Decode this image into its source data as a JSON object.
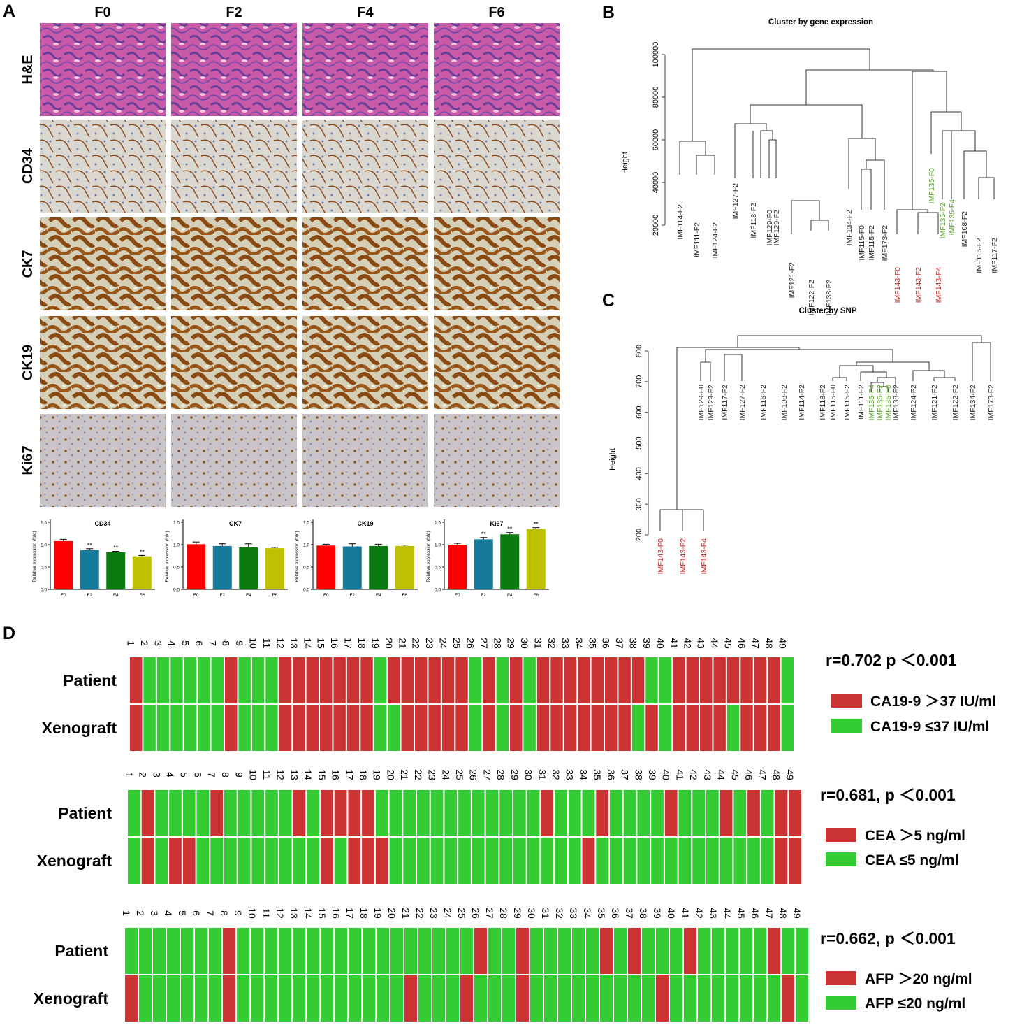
{
  "panels": {
    "a": "A",
    "b": "B",
    "c": "C",
    "d": "D"
  },
  "panel_a": {
    "columns": [
      "F0",
      "F2",
      "F4",
      "F6"
    ],
    "rows": [
      "H&E",
      "CD34",
      "CK7",
      "CK19",
      "Ki67"
    ]
  },
  "chart_data": [
    {
      "type": "bar",
      "title": "CD34",
      "ylabel": "Relative expression (fold)",
      "categories": [
        "F0",
        "F2",
        "F4",
        "F6"
      ],
      "values": [
        1.08,
        0.88,
        0.83,
        0.74
      ],
      "errors": [
        0.04,
        0.03,
        0.02,
        0.02
      ],
      "significance": [
        "",
        "**",
        "**",
        "**"
      ],
      "ylim": [
        0,
        1.5
      ],
      "yticks": [
        "0.0",
        "0.5",
        "1.0",
        "1.5"
      ],
      "colors": [
        "#ff0000",
        "#167a9a",
        "#0a7a10",
        "#bfc000"
      ]
    },
    {
      "type": "bar",
      "title": "CK7",
      "ylabel": "Relative expression (fold)",
      "categories": [
        "F0",
        "F2",
        "F4",
        "F6"
      ],
      "values": [
        1.01,
        0.97,
        0.94,
        0.92
      ],
      "errors": [
        0.05,
        0.05,
        0.08,
        0.02
      ],
      "significance": [
        "",
        "",
        "",
        ""
      ],
      "ylim": [
        0,
        1.5
      ],
      "yticks": [
        "0.0",
        "0.5",
        "1.0",
        "1.5"
      ],
      "colors": [
        "#ff0000",
        "#167a9a",
        "#0a7a10",
        "#bfc000"
      ]
    },
    {
      "type": "bar",
      "title": "CK19",
      "ylabel": "Relative expression (fold)",
      "categories": [
        "F0",
        "F2",
        "F4",
        "F6"
      ],
      "values": [
        0.98,
        0.96,
        0.97,
        0.97
      ],
      "errors": [
        0.03,
        0.06,
        0.04,
        0.02
      ],
      "significance": [
        "",
        "",
        "",
        ""
      ],
      "ylim": [
        0,
        1.5
      ],
      "yticks": [
        "0.0",
        "0.5",
        "1.0",
        "1.5"
      ],
      "colors": [
        "#ff0000",
        "#167a9a",
        "#0a7a10",
        "#bfc000"
      ]
    },
    {
      "type": "bar",
      "title": "Ki67",
      "ylabel": "Relative expression (fold)",
      "categories": [
        "F0",
        "F2",
        "F4",
        "F6"
      ],
      "values": [
        1.0,
        1.12,
        1.23,
        1.35
      ],
      "errors": [
        0.03,
        0.04,
        0.04,
        0.03
      ],
      "significance": [
        "",
        "**",
        "**",
        "**"
      ],
      "ylim": [
        0,
        1.5
      ],
      "yticks": [
        "0.0",
        "0.5",
        "1.0",
        "1.5"
      ],
      "colors": [
        "#ff0000",
        "#167a9a",
        "#0a7a10",
        "#bfc000"
      ]
    }
  ],
  "dendro_b": {
    "title": "Cluster by gene expression",
    "ylabel": "Height",
    "yticks": [
      "20000",
      "40000",
      "60000",
      "80000",
      "100000"
    ],
    "leaves": [
      {
        "label": "IMF114-F2",
        "color": "#222222"
      },
      {
        "label": "IMF111-F2",
        "color": "#222222"
      },
      {
        "label": "IMF124-F2",
        "color": "#222222"
      },
      {
        "label": "IMF127-F2",
        "color": "#222222"
      },
      {
        "label": "IMF118-F2",
        "color": "#222222"
      },
      {
        "label": "IMF129-F0",
        "color": "#222222"
      },
      {
        "label": "IMF129-F2",
        "color": "#222222"
      },
      {
        "label": "IMF121-F2",
        "color": "#222222"
      },
      {
        "label": "IMF122-F2",
        "color": "#222222"
      },
      {
        "label": "IMF138-F2",
        "color": "#222222"
      },
      {
        "label": "IMF134-F2",
        "color": "#222222"
      },
      {
        "label": "IMF115-F0",
        "color": "#222222"
      },
      {
        "label": "IMF115-F2",
        "color": "#222222"
      },
      {
        "label": "IMF173-F2",
        "color": "#222222"
      },
      {
        "label": "IMF143-F0",
        "color": "#cc2222"
      },
      {
        "label": "IMF143-F2",
        "color": "#cc2222"
      },
      {
        "label": "IMF143-F4",
        "color": "#cc2222"
      },
      {
        "label": "IMF135-F0",
        "color": "#5aa02c"
      },
      {
        "label": "IMF135-F2",
        "color": "#5aa02c"
      },
      {
        "label": "IMF135-F4",
        "color": "#5aa02c"
      },
      {
        "label": "IMF108-F2",
        "color": "#222222"
      },
      {
        "label": "IMF116-F2",
        "color": "#222222"
      },
      {
        "label": "IMF117-F2",
        "color": "#222222"
      }
    ]
  },
  "dendro_c": {
    "title": "Cluster by SNP",
    "ylabel": "Height",
    "yticks": [
      "200",
      "300",
      "400",
      "500",
      "600",
      "700",
      "800"
    ],
    "leaves": [
      {
        "label": "IMF143-F0",
        "color": "#cc2222"
      },
      {
        "label": "IMF143-F2",
        "color": "#cc2222"
      },
      {
        "label": "IMF143-F4",
        "color": "#cc2222"
      },
      {
        "label": "IMF129-F0",
        "color": "#222222"
      },
      {
        "label": "IMF129-F2",
        "color": "#222222"
      },
      {
        "label": "IMF117-F2",
        "color": "#222222"
      },
      {
        "label": "IMF127-F2",
        "color": "#222222"
      },
      {
        "label": "IMF116-F2",
        "color": "#222222"
      },
      {
        "label": "IMF108-F2",
        "color": "#222222"
      },
      {
        "label": "IMF114-F2",
        "color": "#222222"
      },
      {
        "label": "IMF118-F2",
        "color": "#222222"
      },
      {
        "label": "IMF115-F0",
        "color": "#222222"
      },
      {
        "label": "IMF115-F2",
        "color": "#222222"
      },
      {
        "label": "IMF111-F2",
        "color": "#222222"
      },
      {
        "label": "IMF135-F4",
        "color": "#5aa02c"
      },
      {
        "label": "IMF135-F2",
        "color": "#5aa02c"
      },
      {
        "label": "IMF135-F0",
        "color": "#5aa02c"
      },
      {
        "label": "IMF138-F2",
        "color": "#222222"
      },
      {
        "label": "IMF124-F2",
        "color": "#222222"
      },
      {
        "label": "IMF121-F2",
        "color": "#222222"
      },
      {
        "label": "IMF122-F2",
        "color": "#222222"
      },
      {
        "label": "IMF134-F2",
        "color": "#222222"
      },
      {
        "label": "IMF173-F2",
        "color": "#222222"
      }
    ]
  },
  "heatmaps": [
    {
      "stat": "r=0.702 p ＜0.001",
      "legend_high": "CA19-9 ＞37 IU/ml",
      "legend_low": "CA19-9 ≤37 IU/ml",
      "row_labels": [
        "Patient",
        "Xenograft"
      ],
      "patient": "1000000100011111110111111010101111111100111111110",
      "xenograft": "1000000100011111110011111010101111111010111101110"
    },
    {
      "stat": "r=0.681, p ＜0.001",
      "legend_high": "CEA ＞5 ng/ml",
      "legend_low": "CEA ≤5 ng/ml",
      "row_labels": [
        "Patient",
        "Xenograft"
      ],
      "patient": "0100001000001011110000000000001000100001000101011",
      "xenograft": "0101100000000010111000000000000001000000000000011"
    },
    {
      "stat": "r=0.662, p ＜0.001",
      "legend_high": "AFP ＞20 ng/ml",
      "legend_low": "AFP ≤20 ng/ml",
      "row_labels": [
        "Patient",
        "Xenograft"
      ],
      "patient": "0000000100000000000000000100100000101000100000100",
      "xenograft": "1000000100000000000010001000100000000010000000010"
    }
  ],
  "colors": {
    "red": "#cc3333",
    "green": "#33cc33"
  }
}
